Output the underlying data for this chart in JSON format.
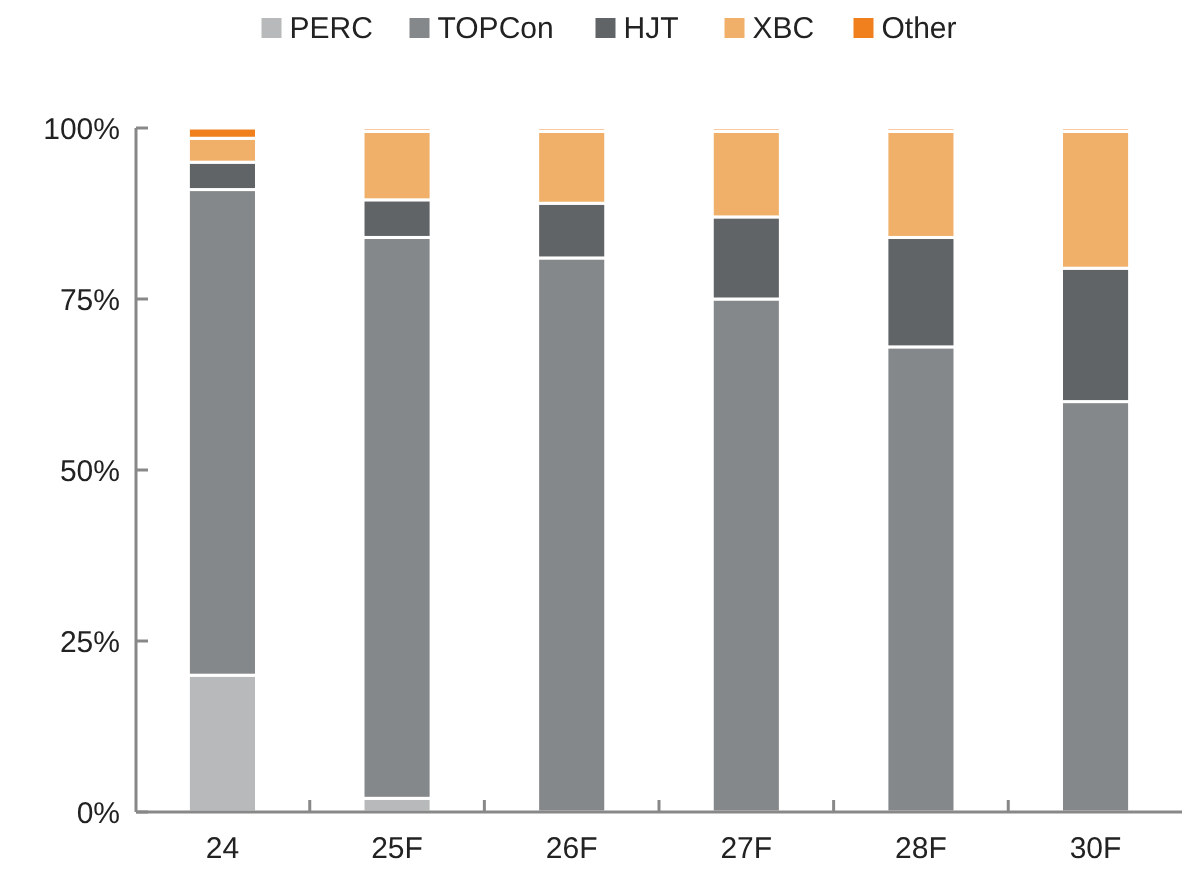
{
  "chart_data": {
    "type": "bar",
    "stacked": true,
    "categories": [
      "24",
      "25F",
      "26F",
      "27F",
      "28F",
      "30F"
    ],
    "series": [
      {
        "name": "PERC",
        "color": "#b8b9ba",
        "values": [
          20,
          2,
          null,
          null,
          null,
          null
        ]
      },
      {
        "name": "TOPCon",
        "color": "#85888a",
        "values": [
          71,
          82,
          81,
          75,
          68,
          60
        ]
      },
      {
        "name": "HJT",
        "color": "#616466",
        "values": [
          4,
          5.5,
          8,
          12,
          16,
          19.5
        ]
      },
      {
        "name": "XBC",
        "color": "#f0b06a",
        "values": [
          3.5,
          10,
          10.5,
          12.5,
          15.5,
          20
        ]
      },
      {
        "name": "Other",
        "color": "#f0801e",
        "values": [
          1.5,
          0.5,
          0.5,
          0.5,
          0.5,
          0.5
        ]
      }
    ],
    "ylim": [
      0,
      100
    ],
    "yticks": [
      {
        "value": 0,
        "label": "0%"
      },
      {
        "value": 25,
        "label": "25%"
      },
      {
        "value": 50,
        "label": "50%"
      },
      {
        "value": 75,
        "label": "75%"
      },
      {
        "value": 100,
        "label": "100%"
      }
    ],
    "grid": false,
    "legend": "top"
  }
}
